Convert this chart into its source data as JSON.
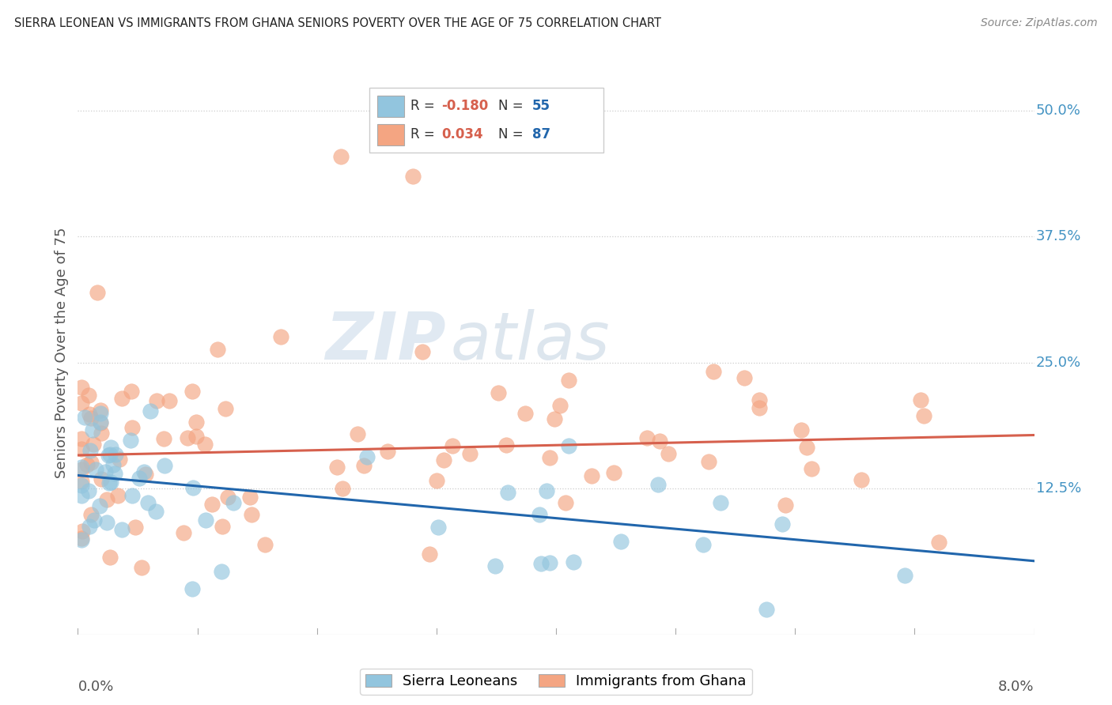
{
  "title": "SIERRA LEONEAN VS IMMIGRANTS FROM GHANA SENIORS POVERTY OVER THE AGE OF 75 CORRELATION CHART",
  "source": "Source: ZipAtlas.com",
  "ylabel": "Seniors Poverty Over the Age of 75",
  "ytick_vals": [
    0.125,
    0.25,
    0.375,
    0.5
  ],
  "ytick_labels": [
    "12.5%",
    "25.0%",
    "37.5%",
    "50.0%"
  ],
  "xmin": 0.0,
  "xmax": 0.08,
  "ymin": -0.02,
  "ymax": 0.54,
  "legend1_r": "-0.180",
  "legend1_n": "55",
  "legend2_r": "0.034",
  "legend2_n": "87",
  "color_blue": "#92c5de",
  "color_pink": "#f4a582",
  "line_blue": "#2166ac",
  "line_pink": "#d6604d",
  "watermark_text": "ZIP",
  "watermark_text2": "atlas",
  "sl_line_y0": 0.138,
  "sl_line_y1": 0.053,
  "gh_line_y0": 0.158,
  "gh_line_y1": 0.178,
  "bottom_legend_labels": [
    "Sierra Leoneans",
    "Immigrants from Ghana"
  ]
}
